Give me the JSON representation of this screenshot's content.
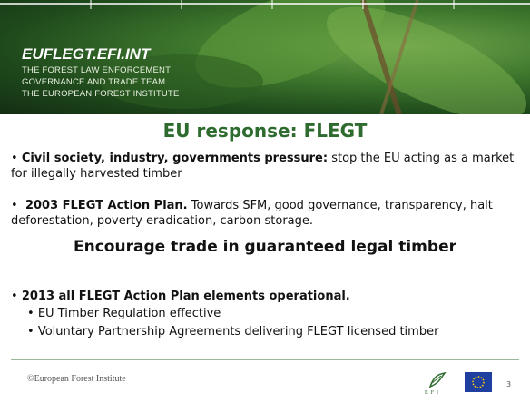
{
  "header": {
    "site": "EUFLEGT.EFI.INT",
    "lines": [
      "THE FOREST LAW ENFORCEMENT",
      "GOVERNANCE AND TRADE TEAM",
      "THE EUROPEAN FOREST INSTITUTE"
    ]
  },
  "title": "EU response: FLEGT",
  "bullets": [
    {
      "bold": "Civil society, industry, governments pressure:",
      "text": " stop the EU acting as a market for illegally harvested timber"
    },
    {
      "bold": "2003 FLEGT Action Plan.",
      "text": " Towards SFM, good governance, transparency, halt deforestation, poverty eradication, carbon storage."
    }
  ],
  "emphasis": "Encourage trade in guaranteed legal timber",
  "operational": {
    "bold": "2013 all FLEGT Action Plan elements operational.",
    "items": [
      "EU Timber Regulation effective",
      "Voluntary Partnership Agreements delivering FLEGT licensed timber"
    ]
  },
  "footer": {
    "copyright": "©European Forest Institute",
    "logo": "EFI",
    "page": "3"
  }
}
